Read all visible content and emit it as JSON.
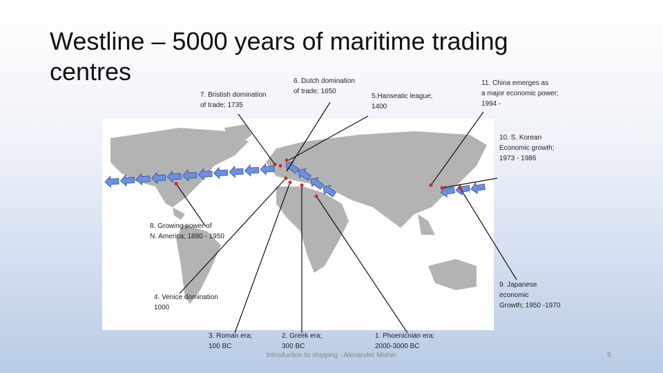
{
  "title": [
    "Westline – 5000 years of maritime trading",
    "centres"
  ],
  "labels": [
    {
      "lines": [
        "6. Dutch domination",
        "of trade; 1650"
      ]
    },
    {
      "lines": [
        "7. Bristish domination",
        "of trade; 1735"
      ]
    },
    {
      "lines": [
        "5.Hanseatic league;",
        "1400"
      ]
    },
    {
      "lines": [
        "11. China emerges as",
        "a major economic power;",
        "1994 -"
      ]
    },
    {
      "lines": [
        "10. S. Korean",
        "Economic growth;",
        "1973 - 1986"
      ]
    },
    {
      "lines": [
        "8. Growing power of",
        "N. America; 1880 - 1950"
      ]
    },
    {
      "lines": [
        "9. Japanese",
        "economic",
        "Growth; 1950 -1970"
      ]
    },
    {
      "lines": [
        "4. Venice domination",
        "1000"
      ]
    },
    {
      "lines": [
        "3. Roman era;",
        "100 BC"
      ]
    },
    {
      "lines": [
        "2. Greek era;",
        "300 BC"
      ]
    },
    {
      "lines": [
        "1. Phoenicnian era;",
        "2000-3000 BC"
      ]
    }
  ],
  "footer": "Introduction to shipping - Alexander Mishin",
  "page_number": "9"
}
